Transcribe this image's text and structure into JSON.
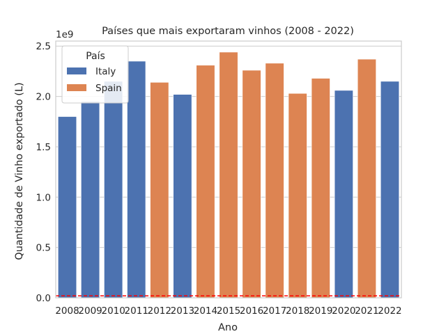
{
  "chart_data": {
    "type": "bar",
    "title": "Países que mais exportaram vinhos (2008 - 2022)",
    "xlabel": "Ano",
    "ylabel": "Quantidade de Vinho exportado (L)",
    "y_scale_label": "1e9",
    "ylim": [
      0,
      2.55
    ],
    "yticks": [
      0.0,
      0.5,
      1.0,
      1.5,
      2.0,
      2.5
    ],
    "ytick_labels": [
      "0.0",
      "0.5",
      "1.0",
      "1.5",
      "2.0",
      "2.5"
    ],
    "grid": true,
    "legend": {
      "title": "País",
      "placement": "top-left",
      "entries": [
        {
          "name": "Italy",
          "color": "#4c72b0"
        },
        {
          "name": "Spain",
          "color": "#dd8452"
        }
      ]
    },
    "categories": [
      "2008",
      "2009",
      "2010",
      "2011",
      "2012",
      "2013",
      "2014",
      "2015",
      "2016",
      "2017",
      "2018",
      "2019",
      "2020",
      "2021",
      "2022"
    ],
    "values": [
      1.8,
      1.95,
      2.15,
      2.35,
      2.14,
      2.02,
      2.31,
      2.44,
      2.26,
      2.33,
      2.03,
      2.18,
      2.06,
      2.37,
      2.15
    ],
    "country": [
      "Italy",
      "Italy",
      "Italy",
      "Italy",
      "Spain",
      "Italy",
      "Spain",
      "Spain",
      "Spain",
      "Spain",
      "Spain",
      "Spain",
      "Italy",
      "Spain",
      "Italy"
    ],
    "reference_line": {
      "value": 0.02,
      "color": "#ff0000",
      "style": "dashed"
    }
  }
}
